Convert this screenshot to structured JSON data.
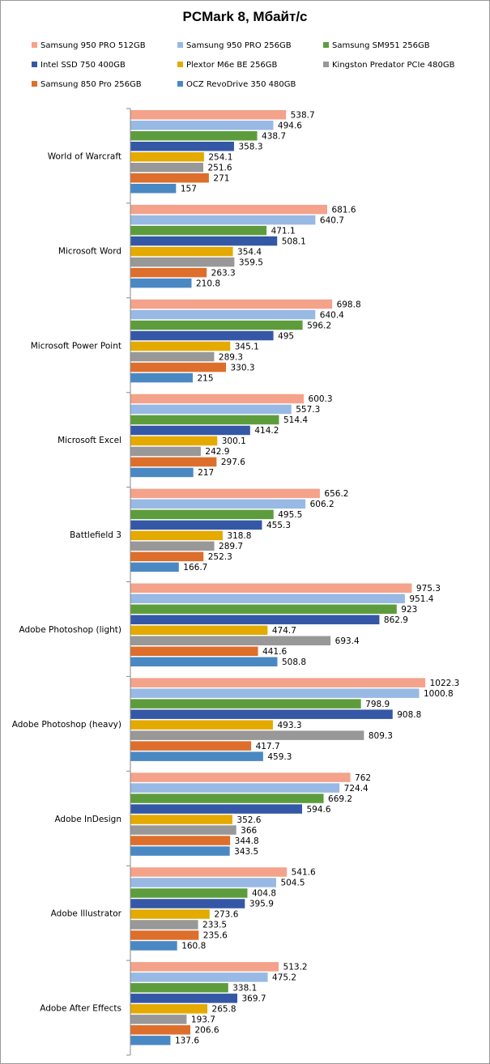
{
  "chart_data": {
    "type": "bar",
    "orientation": "horizontal",
    "title": "PCMark 8, Мбайт/с",
    "xlim": [
      0,
      1050
    ],
    "grid": false,
    "legend_position": "top",
    "categories": [
      "World of Warcraft",
      "Microsoft Word",
      "Microsoft Power Point",
      "Microsoft Excel",
      "Battlefield 3",
      "Adobe Photoshop (light)",
      "Adobe Photoshop (heavy)",
      "Adobe InDesign",
      "Adobe Illustrator",
      "Adobe After Effects"
    ],
    "series": [
      {
        "name": "Samsung 950 PRO 512GB",
        "color": "#f4a28a",
        "values": [
          538.7,
          681.6,
          698.8,
          600.3,
          656.2,
          975.3,
          1022.3,
          762,
          541.6,
          513.2
        ]
      },
      {
        "name": "Samsung 950 PRO 256GB",
        "color": "#98b9e3",
        "values": [
          494.6,
          640.7,
          640.4,
          557.3,
          606.2,
          951.4,
          1000.8,
          724.4,
          504.5,
          475.2
        ]
      },
      {
        "name": "Samsung SM951 256GB",
        "color": "#5d9c3c",
        "values": [
          438.7,
          471.1,
          596.2,
          514.4,
          495.5,
          923,
          798.9,
          669.2,
          404.8,
          338.1
        ]
      },
      {
        "name": "Intel SSD 750 400GB",
        "color": "#3458a6",
        "values": [
          358.3,
          508.1,
          495,
          414.2,
          455.3,
          862.9,
          908.8,
          594.6,
          395.9,
          369.7
        ]
      },
      {
        "name": "Plextor M6e BE 256GB",
        "color": "#e4aa00",
        "values": [
          254.1,
          354.4,
          345.1,
          300.1,
          318.8,
          474.7,
          493.3,
          352.6,
          273.6,
          265.8
        ]
      },
      {
        "name": "Kingston Predator PCIe 480GB",
        "color": "#989898",
        "values": [
          251.6,
          359.5,
          289.3,
          242.9,
          289.7,
          693.4,
          809.3,
          366,
          233.5,
          193.7
        ]
      },
      {
        "name": "Samsung 850 Pro 256GB",
        "color": "#dd6e2b",
        "values": [
          271,
          263.3,
          330.3,
          297.6,
          252.3,
          441.6,
          417.7,
          344.8,
          235.6,
          206.6
        ]
      },
      {
        "name": "OCZ RevoDrive 350 480GB",
        "color": "#4a88c3",
        "values": [
          157,
          210.8,
          215,
          217,
          166.7,
          508.8,
          459.3,
          343.5,
          160.8,
          137.6
        ]
      }
    ]
  }
}
